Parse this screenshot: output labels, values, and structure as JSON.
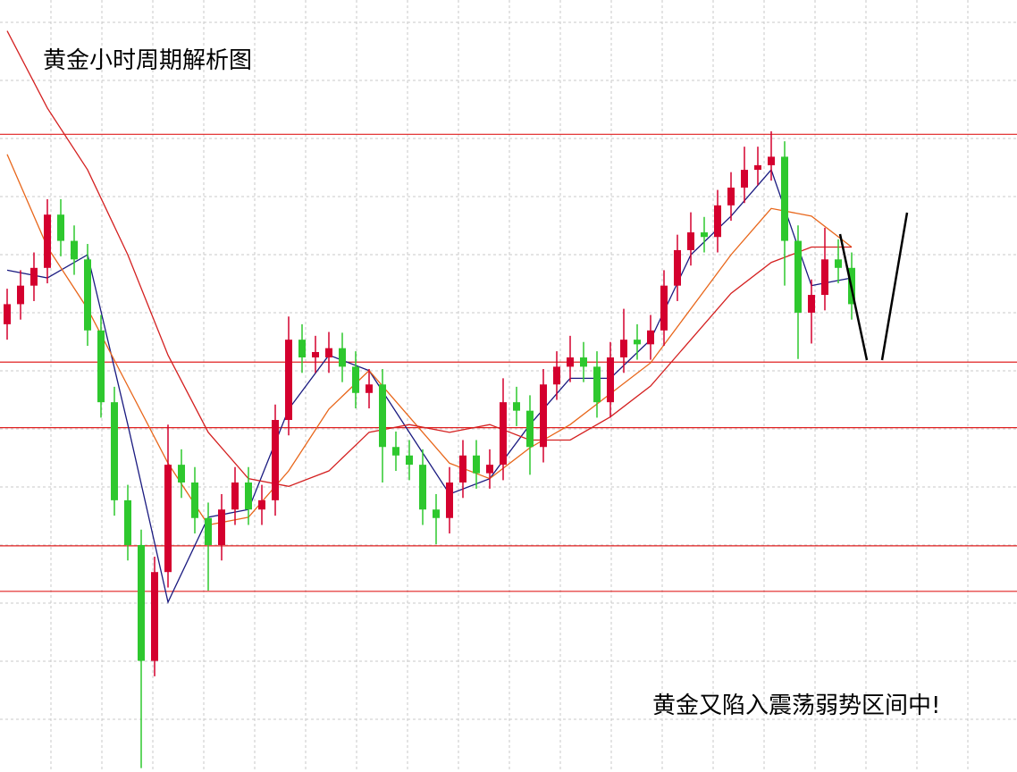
{
  "chart_data": {
    "type": "candlestick",
    "title": "黄金小时周期解析图",
    "annotation": "黄金又陷入震荡弱势区间中!",
    "ylim": [
      0,
      100
    ],
    "up_color": "#d4002e",
    "down_color": "#2ec82e",
    "open": [
      58,
      60.6,
      63,
      65.3,
      72.2,
      68.8,
      66.4,
      57.2,
      47.9,
      35.2,
      29.4,
      14.4,
      25.9,
      39.8,
      37.5,
      32.9,
      29.4,
      34,
      37.5,
      34,
      35.2,
      45.6,
      56,
      53.7,
      53.7,
      54.9,
      52.5,
      49.1,
      50.2,
      42.1,
      41,
      39.8,
      34,
      32.9,
      37.5,
      41,
      38.7,
      39.8,
      47.9,
      46.8,
      42.1,
      50.2,
      52.5,
      53.7,
      52.5,
      47.9,
      53.7,
      56,
      55.4,
      57.2,
      63,
      67.6,
      69.9,
      69.3,
      73.4,
      75.7,
      78,
      78.6,
      79.7,
      68.8,
      59.5,
      61.8,
      66.4,
      65.3
    ],
    "high": [
      62.6,
      65,
      67.3,
      74.2,
      74.2,
      70.8,
      68.4,
      59.2,
      49.9,
      37.2,
      31.4,
      27.9,
      45,
      41.8,
      39.5,
      34.9,
      36,
      39.5,
      39.5,
      37.2,
      47.6,
      59,
      58,
      56.5,
      57,
      56.9,
      54.5,
      52.2,
      52.2,
      44.1,
      43,
      41.8,
      36,
      39.5,
      43,
      43,
      41.8,
      51,
      49.9,
      48.8,
      52.2,
      54.5,
      56.5,
      55.7,
      54.5,
      55.7,
      60,
      58,
      59.2,
      65,
      69.6,
      72.5,
      71.9,
      75.4,
      77.7,
      81,
      81,
      83,
      81.7,
      70.8,
      63.8,
      70.5,
      69,
      67.3
    ],
    "low": [
      56,
      58.6,
      61,
      63.3,
      66.8,
      64.4,
      55.2,
      45.9,
      33.2,
      27.4,
      0.5,
      12.4,
      23.9,
      35.5,
      30.9,
      23.5,
      27.4,
      32,
      32,
      32,
      33.2,
      43.6,
      51.7,
      51.7,
      51.7,
      50.5,
      47.1,
      47.1,
      37.5,
      39,
      37.8,
      32,
      29.5,
      30.9,
      35.5,
      36.7,
      36.7,
      37.8,
      44.8,
      38.5,
      40.1,
      48.2,
      50.5,
      50.5,
      45.9,
      45.9,
      51.7,
      53.4,
      53.4,
      55.2,
      61,
      65.6,
      67.3,
      67.3,
      71.4,
      73.7,
      76,
      76.6,
      63,
      53.5,
      55.5,
      59.8,
      63.3,
      58.6
    ],
    "close": [
      60.6,
      63,
      65.3,
      72.2,
      68.8,
      66.4,
      57.2,
      47.9,
      35.2,
      29.4,
      14.4,
      25.9,
      39.8,
      37.5,
      32.9,
      29.4,
      34,
      37.5,
      34,
      35.2,
      45.6,
      56,
      53.7,
      54.4,
      54.9,
      52.5,
      49.1,
      50.2,
      42.1,
      41,
      39.8,
      34,
      32.9,
      37.5,
      41,
      38.7,
      39.8,
      47.9,
      46.8,
      42.1,
      50.2,
      52.5,
      53.7,
      52.5,
      47.9,
      53.7,
      56,
      55.4,
      57.2,
      63,
      67.6,
      69.9,
      69.3,
      73.4,
      75.7,
      78,
      78.6,
      79.7,
      68.8,
      59.5,
      61.8,
      66.4,
      65.3,
      60.6
    ],
    "ma": {
      "x": [
        0,
        3,
        6,
        9,
        12,
        15,
        18,
        21,
        24,
        27,
        30,
        33,
        36,
        39,
        42,
        45,
        48,
        51,
        54,
        57,
        60,
        63
      ],
      "series": [
        {
          "color": "#1a1a80",
          "values": [
            65,
            64,
            67,
            45,
            22,
            33,
            34,
            47,
            54,
            52,
            44,
            36,
            38,
            45,
            51,
            51,
            56,
            67,
            72,
            78,
            63,
            64
          ]
        },
        {
          "color": "#e8661a",
          "values": [
            80,
            68,
            60,
            50,
            40,
            32,
            33,
            39,
            47,
            52,
            46,
            40,
            38,
            42,
            45,
            49,
            53,
            60,
            67,
            73,
            72,
            68
          ]
        },
        {
          "color": "#d42020",
          "values": [
            96,
            86,
            78,
            67,
            54,
            44,
            38,
            37,
            39,
            44,
            45,
            44,
            45,
            43,
            43,
            46,
            50,
            56,
            62,
            66,
            68,
            68
          ]
        }
      ]
    },
    "levels": {
      "color": "#e02020",
      "values": [
        82.6,
        53.1,
        44.6,
        29.3,
        23.4
      ]
    }
  }
}
